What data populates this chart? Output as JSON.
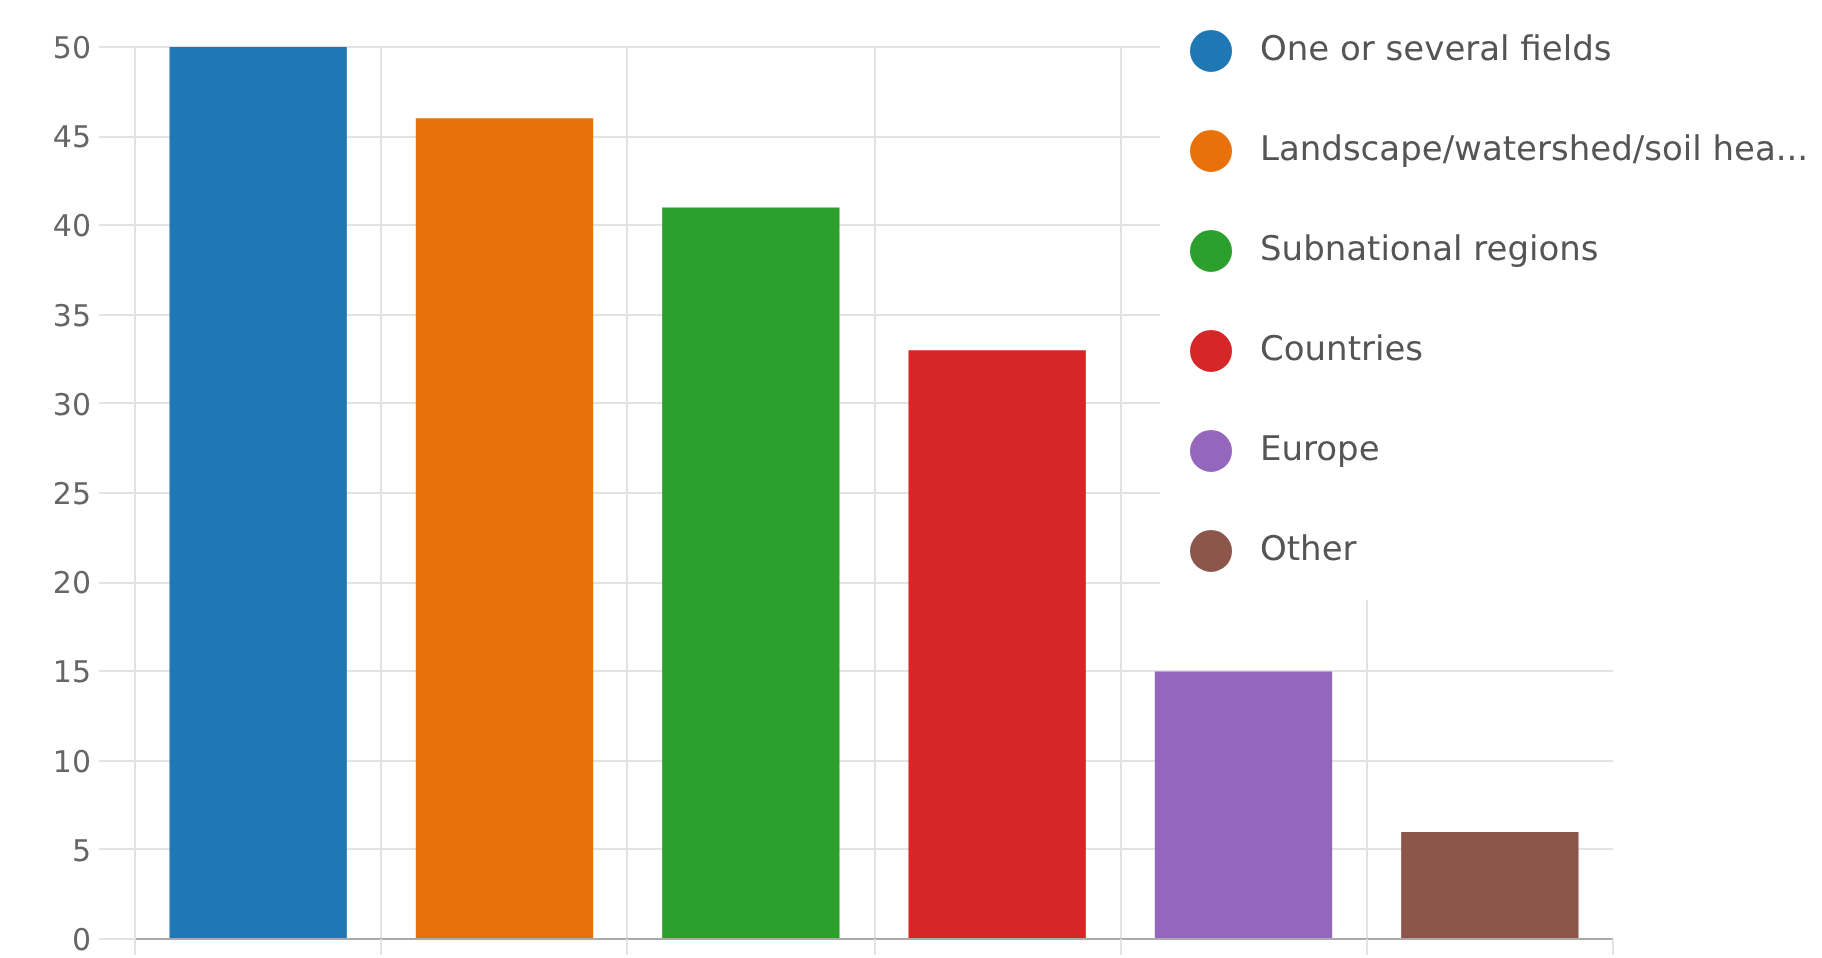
{
  "chart_data": {
    "type": "bar",
    "categories": [
      null,
      null,
      null,
      null,
      null,
      null
    ],
    "series": [
      {
        "name": "One or several fields",
        "color": "#1f77b4",
        "values": [
          50,
          null,
          null,
          null,
          null,
          null
        ]
      },
      {
        "name": "Landscape/watershed/soil hea...",
        "color": "#e8710a",
        "values": [
          null,
          46,
          null,
          null,
          null,
          null
        ]
      },
      {
        "name": "Subnational regions",
        "color": "#2ca02c",
        "values": [
          null,
          null,
          41,
          null,
          null,
          null
        ]
      },
      {
        "name": "Countries",
        "color": "#d62728",
        "values": [
          null,
          null,
          null,
          33,
          null,
          null
        ]
      },
      {
        "name": "Europe",
        "color": "#9467bd",
        "values": [
          null,
          null,
          null,
          null,
          15,
          null
        ]
      },
      {
        "name": "Other",
        "color": "#8c564b",
        "values": [
          null,
          null,
          null,
          null,
          null,
          6
        ]
      }
    ],
    "ylim": [
      0,
      50
    ],
    "yticks": [
      0,
      5,
      10,
      15,
      20,
      25,
      30,
      35,
      40,
      45,
      50
    ],
    "grid": true,
    "legend": "top right"
  }
}
